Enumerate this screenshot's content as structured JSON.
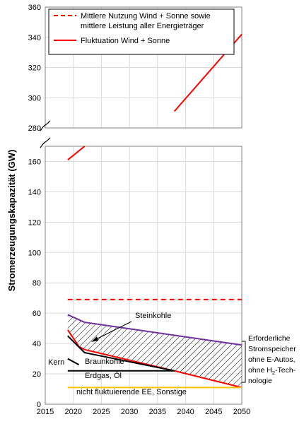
{
  "chart_data": {
    "type": "line",
    "ylabel": "Stromerzeugungskapazität (GW)",
    "x_ticks": [
      "2015",
      "2020",
      "2025",
      "2030",
      "2035",
      "2040",
      "2045",
      "2050"
    ],
    "xlim": [
      2015,
      2050
    ],
    "upper_panel": {
      "ylim": [
        280,
        360
      ],
      "y_ticks": [
        "280",
        "300",
        "320",
        "340",
        "360"
      ]
    },
    "lower_panel": {
      "ylim": [
        0,
        170
      ],
      "y_ticks": [
        "0",
        "20",
        "40",
        "60",
        "80",
        "100",
        "120",
        "140",
        "160"
      ]
    },
    "legend": [
      {
        "label_line1": "Mittlere Nutzung Wind + Sonne sowie",
        "label_line2": "mittlere Leistung aller Energieträger",
        "style": "dashed",
        "color": "#ff0000"
      },
      {
        "label_line1": "Fluktuation Wind + Sonne",
        "label_line2": "",
        "style": "solid",
        "color": "#ff0000"
      }
    ],
    "series": [
      {
        "name": "Mittlere Nutzung Wind + Sonne sowie mittlere Leistung aller Energieträger",
        "color": "#ff0000",
        "dashed": true,
        "x": [
          2019,
          2050
        ],
        "y": [
          69,
          69
        ]
      },
      {
        "name": "Fluktuation Wind + Sonne",
        "color": "#ff0000",
        "x": [
          2019,
          2022,
          2028,
          2038,
          2050
        ],
        "y": [
          161,
          170,
          279,
          291,
          342
        ]
      },
      {
        "color": "#7030a0",
        "x": [
          2019,
          2022,
          2050
        ],
        "y": [
          59,
          54,
          39
        ]
      },
      {
        "color": "#ff0000",
        "x": [
          2019,
          2021,
          2022,
          2038,
          2050
        ],
        "y": [
          49,
          38,
          36,
          22,
          11
        ]
      },
      {
        "color": "#000000",
        "x": [
          2019,
          2022,
          2038
        ],
        "y": [
          45,
          34,
          22
        ]
      },
      {
        "color": "#000000",
        "x": [
          2019,
          2021
        ],
        "y": [
          30,
          26
        ]
      },
      {
        "color": "#000000",
        "x": [
          2019,
          2038
        ],
        "y": [
          22,
          22
        ]
      },
      {
        "color": "#ffc000",
        "x": [
          2019,
          2050
        ],
        "y": [
          11,
          11
        ]
      }
    ],
    "annotations": {
      "steinkohle": "Steinkohle",
      "braunkohle": "Braunkohle",
      "kern": "Kern",
      "erdgas": "Erdgas, Öl",
      "nicht_fluktuierend": "nicht fluktuierende EE, Sonstige",
      "speicher": [
        "Erforderliche",
        "Stromspeicher",
        "ohne E-Autos,",
        "ohne H",
        "-Tech-",
        "nologie"
      ],
      "speicher_subscript": "2"
    },
    "grid": true
  }
}
